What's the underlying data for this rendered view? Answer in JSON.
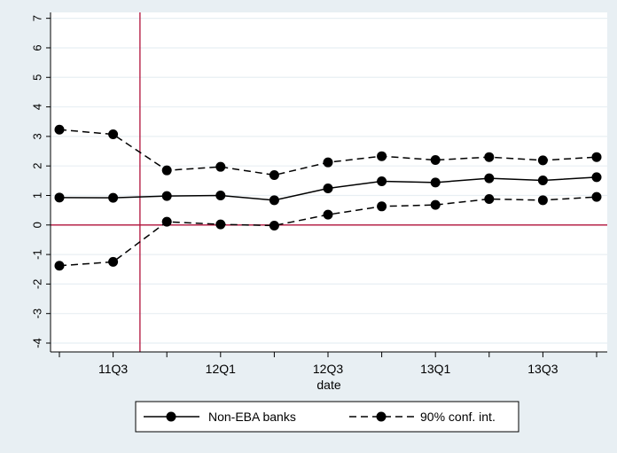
{
  "chart_data": {
    "type": "line",
    "xlabel": "date",
    "ylabel": "",
    "x": [
      "11Q2",
      "11Q3",
      "11Q4",
      "12Q1",
      "12Q2",
      "12Q3",
      "12Q4",
      "13Q1",
      "13Q2",
      "13Q3",
      "13Q4"
    ],
    "x_tick_labels": [
      "11Q3",
      "12Q1",
      "12Q3",
      "13Q1",
      "13Q3"
    ],
    "y_tick_labels": [
      "-4",
      "-3",
      "-2",
      "-1",
      "0",
      "1",
      "2",
      "3",
      "4",
      "5",
      "6",
      "7"
    ],
    "ylim": [
      -4.3,
      7.2
    ],
    "y_ticks": [
      -4,
      -3,
      -2,
      -1,
      0,
      1,
      2,
      3,
      4,
      5,
      6,
      7
    ],
    "grid": true,
    "reference_lines": {
      "horizontal_y": 0,
      "vertical_between": [
        "11Q3",
        "11Q4"
      ]
    },
    "series": [
      {
        "name": "Non-EBA banks",
        "style": "solid",
        "values": [
          0.93,
          0.92,
          0.98,
          1.0,
          0.84,
          1.24,
          1.48,
          1.44,
          1.58,
          1.51,
          1.62
        ]
      },
      {
        "name": "90% conf. int.",
        "style": "dashed",
        "values": [
          3.23,
          3.07,
          1.85,
          1.97,
          1.69,
          2.12,
          2.33,
          2.2,
          2.3,
          2.19,
          2.3
        ]
      },
      {
        "name": "",
        "style": "dashed",
        "values": [
          -1.38,
          -1.25,
          0.11,
          0.02,
          -0.02,
          0.35,
          0.63,
          0.68,
          0.88,
          0.84,
          0.95
        ]
      }
    ],
    "legend": {
      "placement": "bottom",
      "entries": [
        "Non-EBA banks",
        "90% conf. int."
      ]
    },
    "colors": {
      "background": "#e8eff3",
      "plot_bg": "#ffffff",
      "grid": "#e8eff3",
      "line": "#000000",
      "reference": "#b0103a"
    }
  }
}
